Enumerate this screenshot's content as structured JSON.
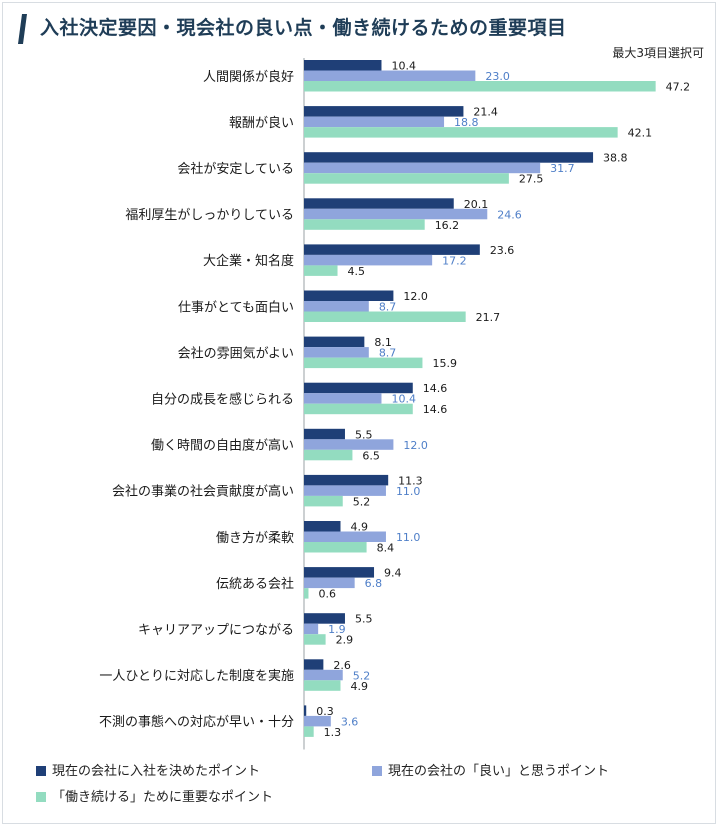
{
  "title": "入社決定要因・現会社の良い点・働き続けるための重要項目",
  "subtitle": "最大3項目選択可",
  "colors": {
    "series1": "#1f3f77",
    "series2": "#8fa5dc",
    "series3": "#93dcc0",
    "title_mark": "#1f3d57"
  },
  "chart_data": {
    "type": "bar",
    "orientation": "horizontal",
    "categories": [
      "人間関係が良好",
      "報酬が良い",
      "会社が安定している",
      "福利厚生がしっかりしている",
      "大企業・知名度",
      "仕事がとても面白い",
      "会社の雰囲気がよい",
      "自分の成長を感じられる",
      "働く時間の自由度が高い",
      "会社の事業の社会貢献度が高い",
      "働き方が柔軟",
      "伝統ある会社",
      "キャリアアップにつながる",
      "一人ひとりに対応した制度を実施",
      "不測の事態への対応が早い・十分"
    ],
    "series": [
      {
        "name": "現在の会社に入社を決めたポイント",
        "values": [
          10.4,
          21.4,
          38.8,
          20.1,
          23.6,
          12.0,
          8.1,
          14.6,
          5.5,
          11.3,
          4.9,
          9.4,
          5.5,
          2.6,
          0.3
        ]
      },
      {
        "name": "現在の会社の「良い」と思うポイント",
        "values": [
          23.0,
          18.8,
          31.7,
          24.6,
          17.2,
          8.7,
          8.7,
          10.4,
          12.0,
          11.0,
          11.0,
          6.8,
          1.9,
          5.2,
          3.6
        ]
      },
      {
        "name": "「働き続ける」ために重要なポイント",
        "values": [
          47.2,
          42.1,
          27.5,
          16.2,
          4.5,
          21.7,
          15.9,
          14.6,
          6.5,
          5.2,
          8.4,
          0.6,
          2.9,
          4.9,
          1.3
        ]
      }
    ],
    "value_labels": [
      [
        "10.4",
        "21.4",
        "38.8",
        "20.1",
        "23.6",
        "12.0",
        "8.1",
        "14.6",
        "5.5",
        "11.3",
        "4.9",
        "9.4",
        "5.5",
        "2.6",
        "0.3"
      ],
      [
        "23.0",
        "18.8",
        "31.7",
        "24.6",
        "17.2",
        "8.7",
        "8.7",
        "10.4",
        "12.0",
        "11.0",
        "11.0",
        "6.8",
        "1.9",
        "5.2",
        "3.6"
      ],
      [
        "47.2",
        "42.1",
        "27.5",
        "16.2",
        "4.5",
        "21.7",
        "15.9",
        "14.6",
        "6.5",
        "5.2",
        "8.4",
        "0.6",
        "2.9",
        "4.9",
        "1.3"
      ]
    ],
    "xlim": [
      0,
      48
    ],
    "grid": false,
    "legend_position": "bottom"
  }
}
